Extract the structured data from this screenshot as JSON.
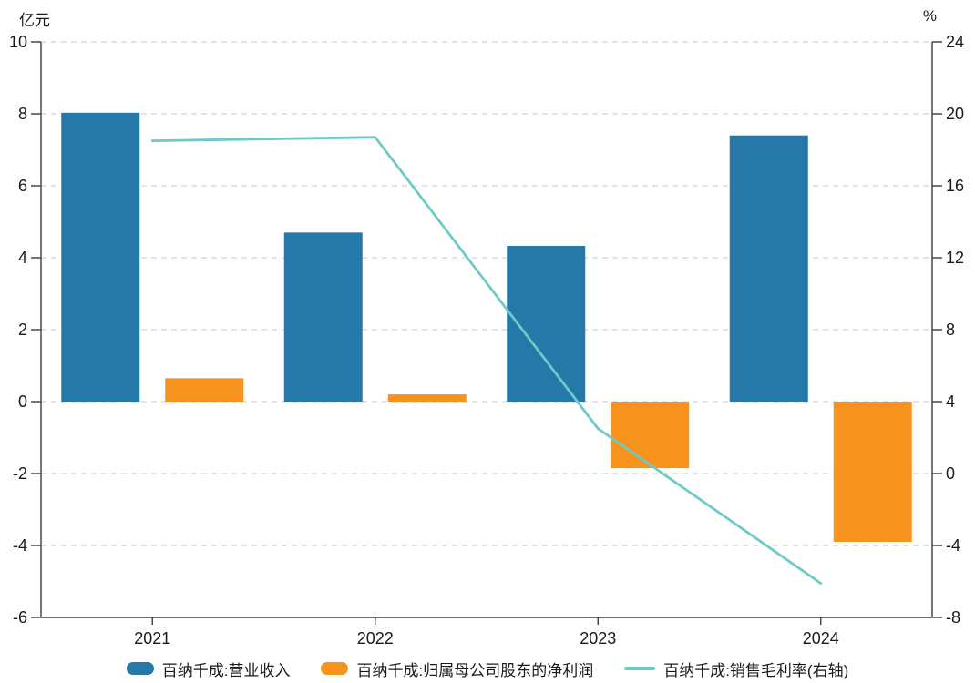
{
  "chart_data": {
    "type": "bar+line",
    "title": "",
    "categories": [
      "2021",
      "2022",
      "2023",
      "2024"
    ],
    "series": [
      {
        "name": "百纳千成:营业收入",
        "type": "bar",
        "axis": "left",
        "color": "#2578A8",
        "values": [
          8.03,
          4.7,
          4.33,
          7.4
        ]
      },
      {
        "name": "百纳千成:归属母公司股东的净利润",
        "type": "bar",
        "axis": "left",
        "color": "#F6921E",
        "values": [
          0.65,
          0.2,
          -1.85,
          -3.9
        ]
      },
      {
        "name": "百纳千成:销售毛利率(右轴)",
        "type": "line",
        "axis": "right",
        "color": "#6FC9C5",
        "values": [
          18.5,
          18.7,
          2.5,
          -6.1
        ]
      }
    ],
    "left_axis": {
      "unit": "亿元",
      "min": -6,
      "max": 10,
      "step": 2,
      "ticks": [
        10,
        8,
        6,
        4,
        2,
        0,
        -2,
        -4,
        -6
      ]
    },
    "right_axis": {
      "unit": "%",
      "min": -8,
      "max": 24,
      "step": 4,
      "ticks": [
        24,
        20,
        16,
        12,
        8,
        4,
        0,
        -4,
        -8
      ]
    },
    "grid": true,
    "legend_position": "bottom",
    "colors": {
      "grid": "#dcdcdc",
      "axis": "#3c3c3c",
      "text": "#1a1a1a"
    }
  }
}
